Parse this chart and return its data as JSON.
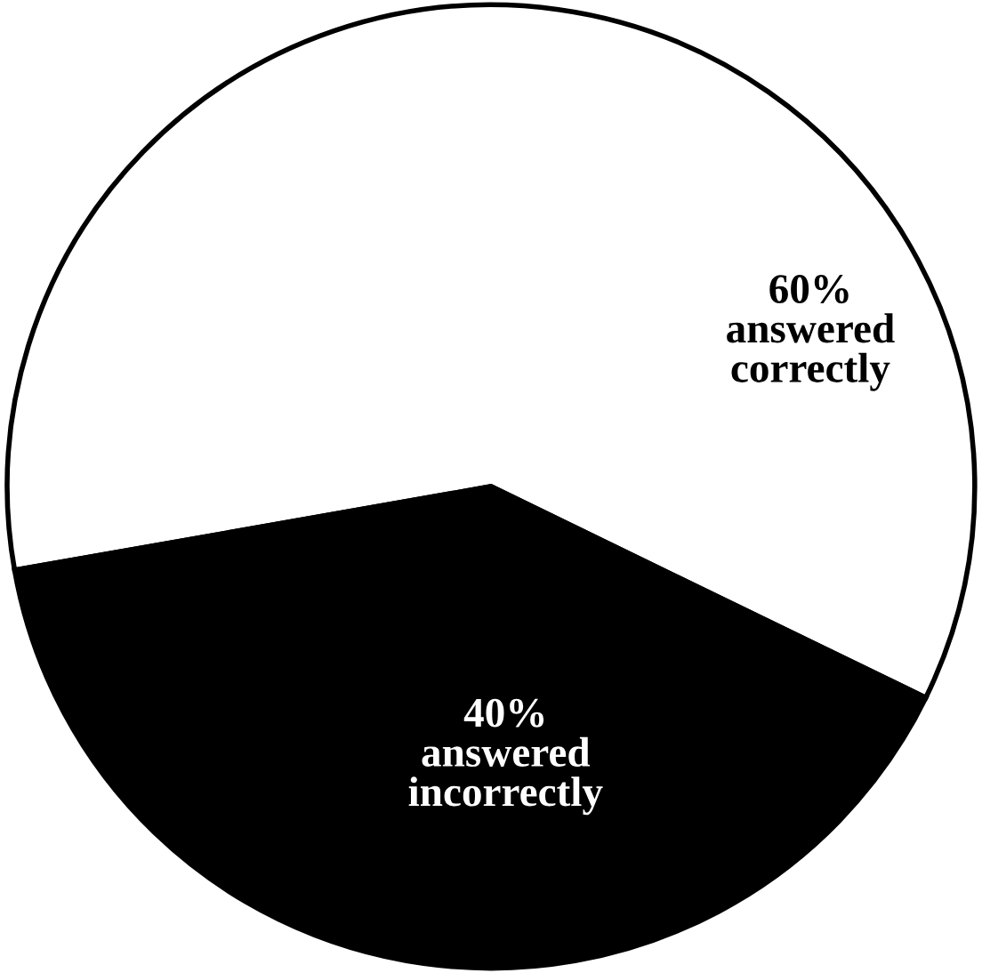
{
  "chart_data": {
    "type": "pie",
    "categories": [
      "answered correctly",
      "answered incorrectly"
    ],
    "values": [
      60,
      40
    ],
    "colors": [
      "#ffffff",
      "#000000"
    ],
    "value_labels": [
      "60%",
      "40%"
    ]
  }
}
